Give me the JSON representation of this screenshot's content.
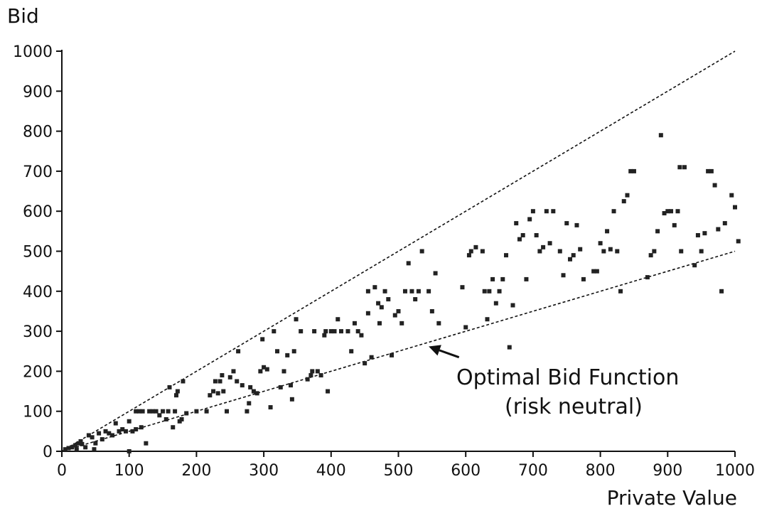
{
  "chart_data": {
    "type": "scatter",
    "title": "",
    "xlabel": "Private Value",
    "ylabel": "Bid",
    "xlim": [
      0,
      1000
    ],
    "ylim": [
      0,
      1000
    ],
    "xticks": [
      "0",
      "100",
      "200",
      "300",
      "400",
      "500",
      "600",
      "700",
      "800",
      "900",
      "1000"
    ],
    "yticks": [
      "0",
      "100",
      "200",
      "300",
      "400",
      "500",
      "600",
      "700",
      "800",
      "900",
      "1000"
    ],
    "grid": false,
    "lines": [
      {
        "style": "dashed",
        "points": [
          [
            0,
            0
          ],
          [
            1000,
            1000
          ]
        ]
      },
      {
        "style": "dashed",
        "points": [
          [
            0,
            0
          ],
          [
            1000,
            500
          ]
        ]
      }
    ],
    "annotation": {
      "line1": "Optimal Bid Function",
      "line2": "(risk neutral)",
      "arrow_to": [
        545,
        262
      ],
      "text_anchor": [
        590,
        235
      ]
    },
    "points": [
      [
        5,
        5
      ],
      [
        10,
        8
      ],
      [
        15,
        10
      ],
      [
        20,
        15
      ],
      [
        22,
        5
      ],
      [
        25,
        20
      ],
      [
        28,
        25
      ],
      [
        30,
        18
      ],
      [
        35,
        10
      ],
      [
        40,
        40
      ],
      [
        45,
        35
      ],
      [
        48,
        5
      ],
      [
        50,
        20
      ],
      [
        55,
        45
      ],
      [
        60,
        30
      ],
      [
        65,
        50
      ],
      [
        70,
        45
      ],
      [
        75,
        40
      ],
      [
        80,
        70
      ],
      [
        85,
        50
      ],
      [
        90,
        55
      ],
      [
        95,
        50
      ],
      [
        100,
        75
      ],
      [
        100,
        0
      ],
      [
        105,
        50
      ],
      [
        110,
        55
      ],
      [
        110,
        100
      ],
      [
        115,
        100
      ],
      [
        118,
        60
      ],
      [
        120,
        100
      ],
      [
        125,
        20
      ],
      [
        130,
        100
      ],
      [
        135,
        100
      ],
      [
        140,
        100
      ],
      [
        145,
        90
      ],
      [
        150,
        100
      ],
      [
        155,
        80
      ],
      [
        158,
        100
      ],
      [
        160,
        160
      ],
      [
        165,
        60
      ],
      [
        168,
        100
      ],
      [
        170,
        140
      ],
      [
        172,
        150
      ],
      [
        175,
        75
      ],
      [
        178,
        80
      ],
      [
        180,
        175
      ],
      [
        185,
        95
      ],
      [
        200,
        100
      ],
      [
        215,
        100
      ],
      [
        220,
        140
      ],
      [
        225,
        150
      ],
      [
        228,
        175
      ],
      [
        232,
        145
      ],
      [
        235,
        175
      ],
      [
        238,
        190
      ],
      [
        240,
        150
      ],
      [
        245,
        100
      ],
      [
        250,
        185
      ],
      [
        255,
        200
      ],
      [
        260,
        175
      ],
      [
        262,
        250
      ],
      [
        268,
        165
      ],
      [
        275,
        100
      ],
      [
        278,
        120
      ],
      [
        280,
        160
      ],
      [
        285,
        150
      ],
      [
        290,
        145
      ],
      [
        295,
        200
      ],
      [
        298,
        280
      ],
      [
        300,
        210
      ],
      [
        305,
        205
      ],
      [
        310,
        110
      ],
      [
        315,
        300
      ],
      [
        320,
        250
      ],
      [
        325,
        160
      ],
      [
        330,
        200
      ],
      [
        335,
        240
      ],
      [
        340,
        165
      ],
      [
        342,
        130
      ],
      [
        345,
        250
      ],
      [
        348,
        330
      ],
      [
        355,
        300
      ],
      [
        365,
        180
      ],
      [
        370,
        190
      ],
      [
        372,
        200
      ],
      [
        375,
        300
      ],
      [
        380,
        200
      ],
      [
        385,
        190
      ],
      [
        390,
        290
      ],
      [
        392,
        300
      ],
      [
        395,
        150
      ],
      [
        400,
        300
      ],
      [
        405,
        300
      ],
      [
        410,
        330
      ],
      [
        415,
        300
      ],
      [
        425,
        300
      ],
      [
        430,
        250
      ],
      [
        435,
        320
      ],
      [
        440,
        300
      ],
      [
        445,
        290
      ],
      [
        450,
        220
      ],
      [
        455,
        345
      ],
      [
        455,
        400
      ],
      [
        460,
        235
      ],
      [
        465,
        410
      ],
      [
        470,
        370
      ],
      [
        472,
        320
      ],
      [
        475,
        360
      ],
      [
        480,
        400
      ],
      [
        485,
        380
      ],
      [
        490,
        240
      ],
      [
        495,
        340
      ],
      [
        500,
        350
      ],
      [
        505,
        320
      ],
      [
        510,
        400
      ],
      [
        515,
        470
      ],
      [
        520,
        400
      ],
      [
        525,
        380
      ],
      [
        530,
        400
      ],
      [
        535,
        500
      ],
      [
        545,
        400
      ],
      [
        550,
        350
      ],
      [
        555,
        445
      ],
      [
        560,
        320
      ],
      [
        595,
        410
      ],
      [
        600,
        310
      ],
      [
        605,
        490
      ],
      [
        608,
        500
      ],
      [
        615,
        510
      ],
      [
        625,
        500
      ],
      [
        628,
        400
      ],
      [
        632,
        330
      ],
      [
        635,
        400
      ],
      [
        640,
        430
      ],
      [
        645,
        370
      ],
      [
        650,
        400
      ],
      [
        655,
        430
      ],
      [
        660,
        490
      ],
      [
        665,
        260
      ],
      [
        670,
        365
      ],
      [
        675,
        570
      ],
      [
        680,
        530
      ],
      [
        685,
        540
      ],
      [
        690,
        430
      ],
      [
        695,
        580
      ],
      [
        700,
        600
      ],
      [
        705,
        540
      ],
      [
        710,
        500
      ],
      [
        715,
        510
      ],
      [
        720,
        600
      ],
      [
        725,
        520
      ],
      [
        730,
        600
      ],
      [
        740,
        500
      ],
      [
        745,
        440
      ],
      [
        750,
        570
      ],
      [
        755,
        480
      ],
      [
        760,
        490
      ],
      [
        765,
        565
      ],
      [
        770,
        505
      ],
      [
        775,
        430
      ],
      [
        790,
        450
      ],
      [
        795,
        450
      ],
      [
        800,
        520
      ],
      [
        805,
        500
      ],
      [
        810,
        550
      ],
      [
        815,
        505
      ],
      [
        820,
        600
      ],
      [
        825,
        500
      ],
      [
        830,
        400
      ],
      [
        835,
        625
      ],
      [
        840,
        640
      ],
      [
        845,
        700
      ],
      [
        850,
        700
      ],
      [
        870,
        435
      ],
      [
        875,
        490
      ],
      [
        880,
        500
      ],
      [
        885,
        550
      ],
      [
        890,
        790
      ],
      [
        895,
        595
      ],
      [
        900,
        600
      ],
      [
        905,
        600
      ],
      [
        910,
        565
      ],
      [
        915,
        600
      ],
      [
        918,
        710
      ],
      [
        920,
        500
      ],
      [
        925,
        710
      ],
      [
        940,
        465
      ],
      [
        945,
        540
      ],
      [
        950,
        500
      ],
      [
        955,
        545
      ],
      [
        960,
        700
      ],
      [
        965,
        700
      ],
      [
        970,
        665
      ],
      [
        975,
        555
      ],
      [
        980,
        400
      ],
      [
        985,
        570
      ],
      [
        995,
        640
      ],
      [
        1000,
        610
      ],
      [
        1005,
        525
      ]
    ]
  }
}
